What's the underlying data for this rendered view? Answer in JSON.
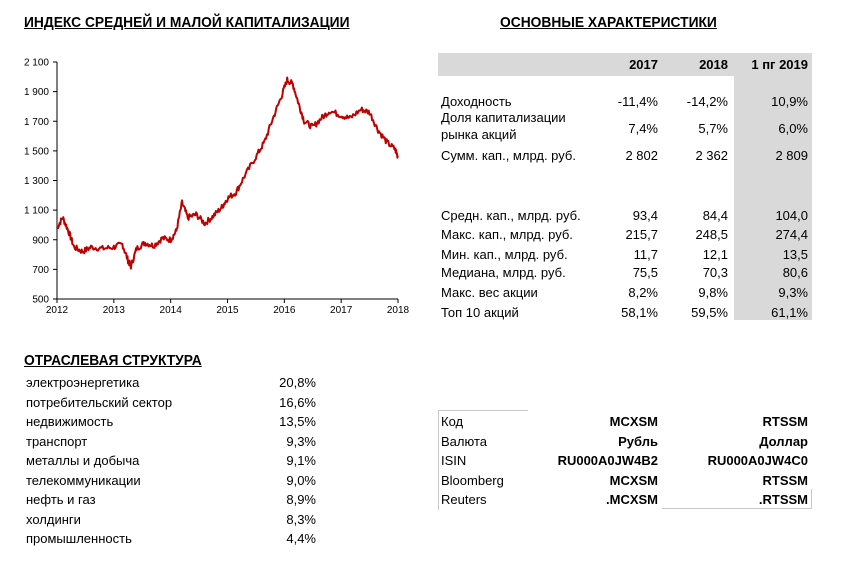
{
  "titles": {
    "index": "ИНДЕКС СРЕДНЕЙ И МАЛОЙ КАПИТАЛИЗАЦИИ",
    "characteristics": "ОСНОВНЫЕ ХАРАКТЕРИСТИКИ",
    "sector": "ОТРАСЛЕВАЯ СТРУКТУРА"
  },
  "chart_data": {
    "type": "line",
    "ylim": [
      500,
      2100
    ],
    "yticks": [
      500,
      700,
      900,
      1100,
      1300,
      1500,
      1700,
      1900,
      2100
    ],
    "ytick_labels": [
      "500",
      "700",
      "900",
      "1 100",
      "1 300",
      "1 500",
      "1 700",
      "1 900",
      "2 100"
    ],
    "xlim": [
      2012,
      2018
    ],
    "xticks": [
      2012,
      2013,
      2014,
      2015,
      2016,
      2017,
      2018
    ],
    "xtick_labels": [
      "2012",
      "2013",
      "2014",
      "2015",
      "2016",
      "2017",
      "2018"
    ],
    "line_color": "#c00000",
    "x": [
      2012.0,
      2012.1,
      2012.2,
      2012.3,
      2012.45,
      2012.6,
      2012.8,
      2013.0,
      2013.15,
      2013.25,
      2013.3,
      2013.4,
      2013.55,
      2013.7,
      2013.85,
      2014.0,
      2014.1,
      2014.2,
      2014.3,
      2014.45,
      2014.6,
      2014.75,
      2014.9,
      2015.0,
      2015.15,
      2015.3,
      2015.5,
      2015.65,
      2015.8,
      2015.95,
      2016.05,
      2016.15,
      2016.25,
      2016.35,
      2016.5,
      2016.65,
      2016.8,
      2017.0,
      2017.15,
      2017.35,
      2017.5,
      2017.65,
      2017.8,
      2017.95,
      2018.0
    ],
    "y": [
      980,
      1050,
      960,
      850,
      820,
      850,
      840,
      850,
      870,
      760,
      720,
      840,
      880,
      860,
      910,
      900,
      960,
      1150,
      1050,
      1070,
      1010,
      1060,
      1120,
      1180,
      1220,
      1330,
      1460,
      1560,
      1720,
      1870,
      1980,
      1950,
      1820,
      1700,
      1660,
      1720,
      1770,
      1740,
      1720,
      1780,
      1760,
      1640,
      1560,
      1510,
      1460
    ]
  },
  "characteristics": {
    "columns": [
      "2017",
      "2018",
      "1 пг 2019"
    ],
    "rows": [
      {
        "label": "Доходность",
        "v": [
          "-11,4%",
          "-14,2%",
          "10,9%"
        ]
      },
      {
        "label": "Доля капитализации\nрынка акций",
        "v": [
          "7,4%",
          "5,7%",
          "6,0%"
        ]
      },
      {
        "label": "Сумм. кап., млрд. руб.",
        "v": [
          "2 802",
          "2 362",
          "2 809"
        ]
      },
      {
        "label": "Средн. кап., млрд. руб.",
        "v": [
          "93,4",
          "84,4",
          "104,0"
        ]
      },
      {
        "label": "Макс. кап., млрд. руб.",
        "v": [
          "215,7",
          "248,5",
          "274,4"
        ]
      },
      {
        "label": "Мин. кап., млрд. руб.",
        "v": [
          "11,7",
          "12,1",
          "13,5"
        ]
      },
      {
        "label": "Медиана, млрд. руб.",
        "v": [
          "75,5",
          "70,3",
          "80,6"
        ]
      },
      {
        "label": "Макс. вес акции",
        "v": [
          "8,2%",
          "9,8%",
          "9,3%"
        ]
      },
      {
        "label": "Топ 10 акций",
        "v": [
          "58,1%",
          "59,5%",
          "61,1%"
        ]
      }
    ]
  },
  "sectors": [
    {
      "name": "электроэнергетика",
      "value": "20,8%"
    },
    {
      "name": "потребительский сектор",
      "value": "16,6%"
    },
    {
      "name": "недвижимость",
      "value": "13,5%"
    },
    {
      "name": "транспорт",
      "value": "9,3%"
    },
    {
      "name": "металлы и добыча",
      "value": "9,1%"
    },
    {
      "name": "телекоммуникации",
      "value": "9,0%"
    },
    {
      "name": "нефть и газ",
      "value": "8,9%"
    },
    {
      "name": "холдинги",
      "value": "8,3%"
    },
    {
      "name": "промышленность",
      "value": "4,4%"
    }
  ],
  "codes": [
    {
      "label": "Код",
      "a": "MCXSM",
      "b": "RTSSM"
    },
    {
      "label": "Валюта",
      "a": "Рубль",
      "b": "Доллар"
    },
    {
      "label": "ISIN",
      "a": "RU000A0JW4B2",
      "b": "RU000A0JW4C0"
    },
    {
      "label": "Bloomberg",
      "a": "MCXSM",
      "b": "RTSSM"
    },
    {
      "label": "Reuters",
      "a": ".MCXSM",
      "b": ".RTSSM"
    }
  ]
}
